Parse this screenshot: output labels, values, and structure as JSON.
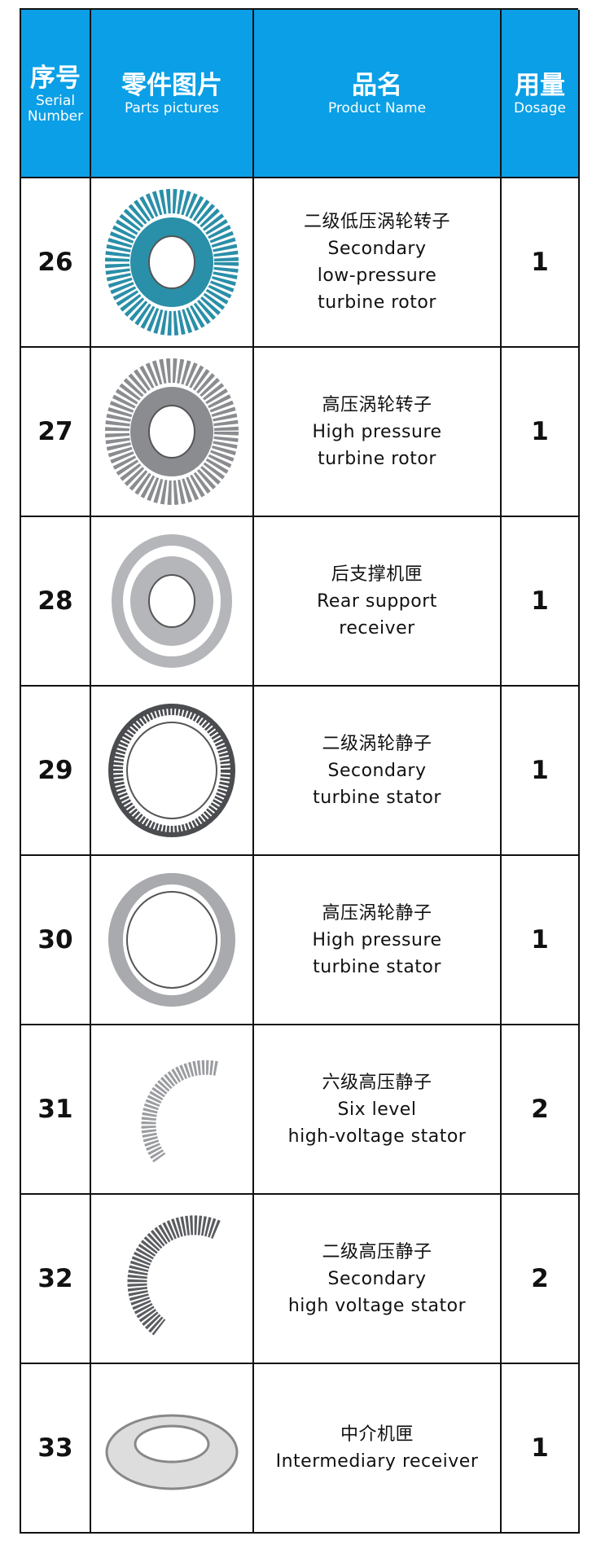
{
  "table": {
    "header": [
      {
        "cn": "序号",
        "en": "Serial Number"
      },
      {
        "cn": "零件图片",
        "en": "Parts pictures"
      },
      {
        "cn": "品名",
        "en": "Product Name"
      },
      {
        "cn": "用量",
        "en": "Dosage"
      }
    ],
    "rows": [
      {
        "serial": "26",
        "name": [
          "二级低压涡轮转子",
          "Secondary",
          "low-pressure",
          "turbine rotor"
        ],
        "dosage": "1"
      },
      {
        "serial": "27",
        "name": [
          "高压涡轮转子",
          "High pressure",
          "turbine rotor"
        ],
        "dosage": "1"
      },
      {
        "serial": "28",
        "name": [
          "后支撑机匣",
          "Rear support",
          "receiver"
        ],
        "dosage": "1"
      },
      {
        "serial": "29",
        "name": [
          "二级涡轮静子",
          "Secondary",
          "turbine stator"
        ],
        "dosage": "1"
      },
      {
        "serial": "30",
        "name": [
          "高压涡轮静子",
          "High pressure",
          "turbine stator"
        ],
        "dosage": "1"
      },
      {
        "serial": "31",
        "name": [
          "六级高压静子",
          "Six level",
          "high-voltage stator"
        ],
        "dosage": "2"
      },
      {
        "serial": "32",
        "name": [
          "二级高压静子",
          "Secondary",
          "high voltage stator"
        ],
        "dosage": "2"
      },
      {
        "serial": "33",
        "name": [
          "中介机匣",
          "Intermediary receiver"
        ],
        "dosage": "1"
      }
    ]
  }
}
